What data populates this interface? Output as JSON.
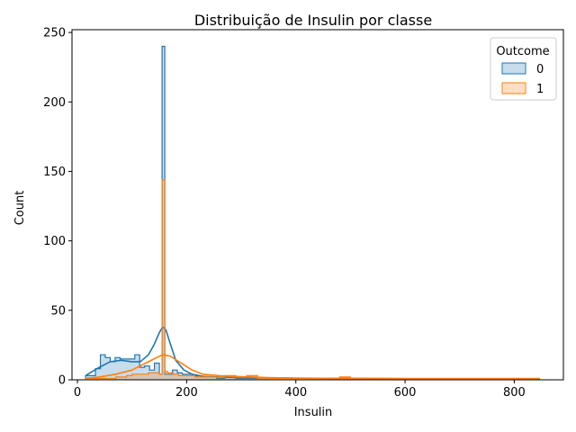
{
  "chart_data": {
    "type": "histogram",
    "title": "Distribuição de Insulin por classe",
    "xlabel": "Insulin",
    "ylabel": "Count",
    "xlim": [
      -10,
      890
    ],
    "ylim": [
      0,
      252
    ],
    "xticks": [
      0,
      200,
      400,
      600,
      800
    ],
    "yticks": [
      0,
      50,
      100,
      150,
      200,
      250
    ],
    "legend": {
      "title": "Outcome",
      "position": "top-right"
    },
    "series": [
      {
        "name": "0",
        "color": "#1f77b4",
        "fill": "rgba(31,119,180,0.25)",
        "bins": [
          [
            15,
            24,
            3
          ],
          [
            24,
            33,
            3
          ],
          [
            33,
            42,
            8
          ],
          [
            42,
            51,
            18
          ],
          [
            51,
            60,
            16
          ],
          [
            60,
            69,
            13
          ],
          [
            69,
            78,
            16
          ],
          [
            78,
            87,
            15
          ],
          [
            87,
            96,
            15
          ],
          [
            96,
            105,
            15
          ],
          [
            105,
            114,
            18
          ],
          [
            114,
            123,
            9
          ],
          [
            123,
            132,
            10
          ],
          [
            132,
            141,
            7
          ],
          [
            141,
            150,
            12
          ],
          [
            150,
            155,
            4
          ],
          [
            155,
            160,
            240
          ],
          [
            160,
            165,
            4
          ],
          [
            165,
            174,
            4
          ],
          [
            174,
            183,
            7
          ],
          [
            183,
            192,
            5
          ],
          [
            192,
            201,
            4
          ],
          [
            201,
            210,
            4
          ],
          [
            210,
            219,
            3
          ],
          [
            219,
            228,
            2
          ],
          [
            228,
            240,
            2
          ],
          [
            240,
            255,
            2
          ],
          [
            255,
            270,
            1
          ],
          [
            270,
            290,
            2
          ],
          [
            290,
            310,
            1
          ],
          [
            310,
            330,
            1
          ],
          [
            330,
            360,
            1
          ],
          [
            360,
            400,
            1
          ],
          [
            400,
            440,
            1
          ],
          [
            440,
            500,
            1
          ],
          [
            500,
            560,
            1
          ],
          [
            560,
            620,
            1
          ],
          [
            620,
            680,
            1
          ],
          [
            680,
            740,
            1
          ],
          [
            740,
            800,
            1
          ],
          [
            800,
            846,
            1
          ]
        ],
        "kde_x": [
          15,
          40,
          60,
          80,
          100,
          115,
          130,
          140,
          150,
          156,
          162,
          170,
          180,
          195,
          210,
          230,
          260,
          300,
          350,
          400,
          500,
          600,
          700,
          800,
          846
        ],
        "kde_y": [
          3,
          9,
          13,
          14,
          13,
          13,
          18,
          25,
          34,
          38,
          36,
          26,
          14,
          7,
          4,
          2.5,
          2,
          1.6,
          1.4,
          1.2,
          1,
          0.8,
          0.6,
          0.4,
          0.3
        ]
      },
      {
        "name": "1",
        "color": "#ff7f0e",
        "fill": "rgba(255,127,14,0.25)",
        "bins": [
          [
            15,
            30,
            1
          ],
          [
            30,
            50,
            1
          ],
          [
            50,
            70,
            1
          ],
          [
            70,
            90,
            2
          ],
          [
            90,
            100,
            3
          ],
          [
            100,
            110,
            4
          ],
          [
            110,
            120,
            4
          ],
          [
            120,
            130,
            4
          ],
          [
            130,
            140,
            5
          ],
          [
            140,
            150,
            5
          ],
          [
            150,
            155,
            4
          ],
          [
            155,
            160,
            144
          ],
          [
            160,
            165,
            6
          ],
          [
            165,
            175,
            5
          ],
          [
            175,
            185,
            4
          ],
          [
            185,
            195,
            3
          ],
          [
            195,
            205,
            3
          ],
          [
            205,
            215,
            3
          ],
          [
            215,
            230,
            2
          ],
          [
            230,
            250,
            2
          ],
          [
            250,
            270,
            2
          ],
          [
            270,
            290,
            3
          ],
          [
            290,
            310,
            2
          ],
          [
            310,
            330,
            3
          ],
          [
            330,
            380,
            1
          ],
          [
            380,
            440,
            1
          ],
          [
            440,
            480,
            1
          ],
          [
            480,
            500,
            2
          ],
          [
            500,
            560,
            1
          ],
          [
            560,
            620,
            1
          ],
          [
            620,
            680,
            1
          ],
          [
            680,
            740,
            1
          ],
          [
            740,
            800,
            1
          ],
          [
            800,
            846,
            1
          ]
        ],
        "kde_x": [
          15,
          40,
          70,
          100,
          120,
          140,
          156,
          170,
          190,
          210,
          230,
          260,
          300,
          350,
          400,
          500,
          600,
          700,
          800,
          846
        ],
        "kde_y": [
          1,
          2,
          4,
          7,
          11,
          15,
          18,
          17,
          12,
          7,
          4,
          3,
          2.2,
          1.6,
          1.2,
          1,
          0.8,
          0.6,
          0.5,
          0.4
        ]
      }
    ]
  }
}
